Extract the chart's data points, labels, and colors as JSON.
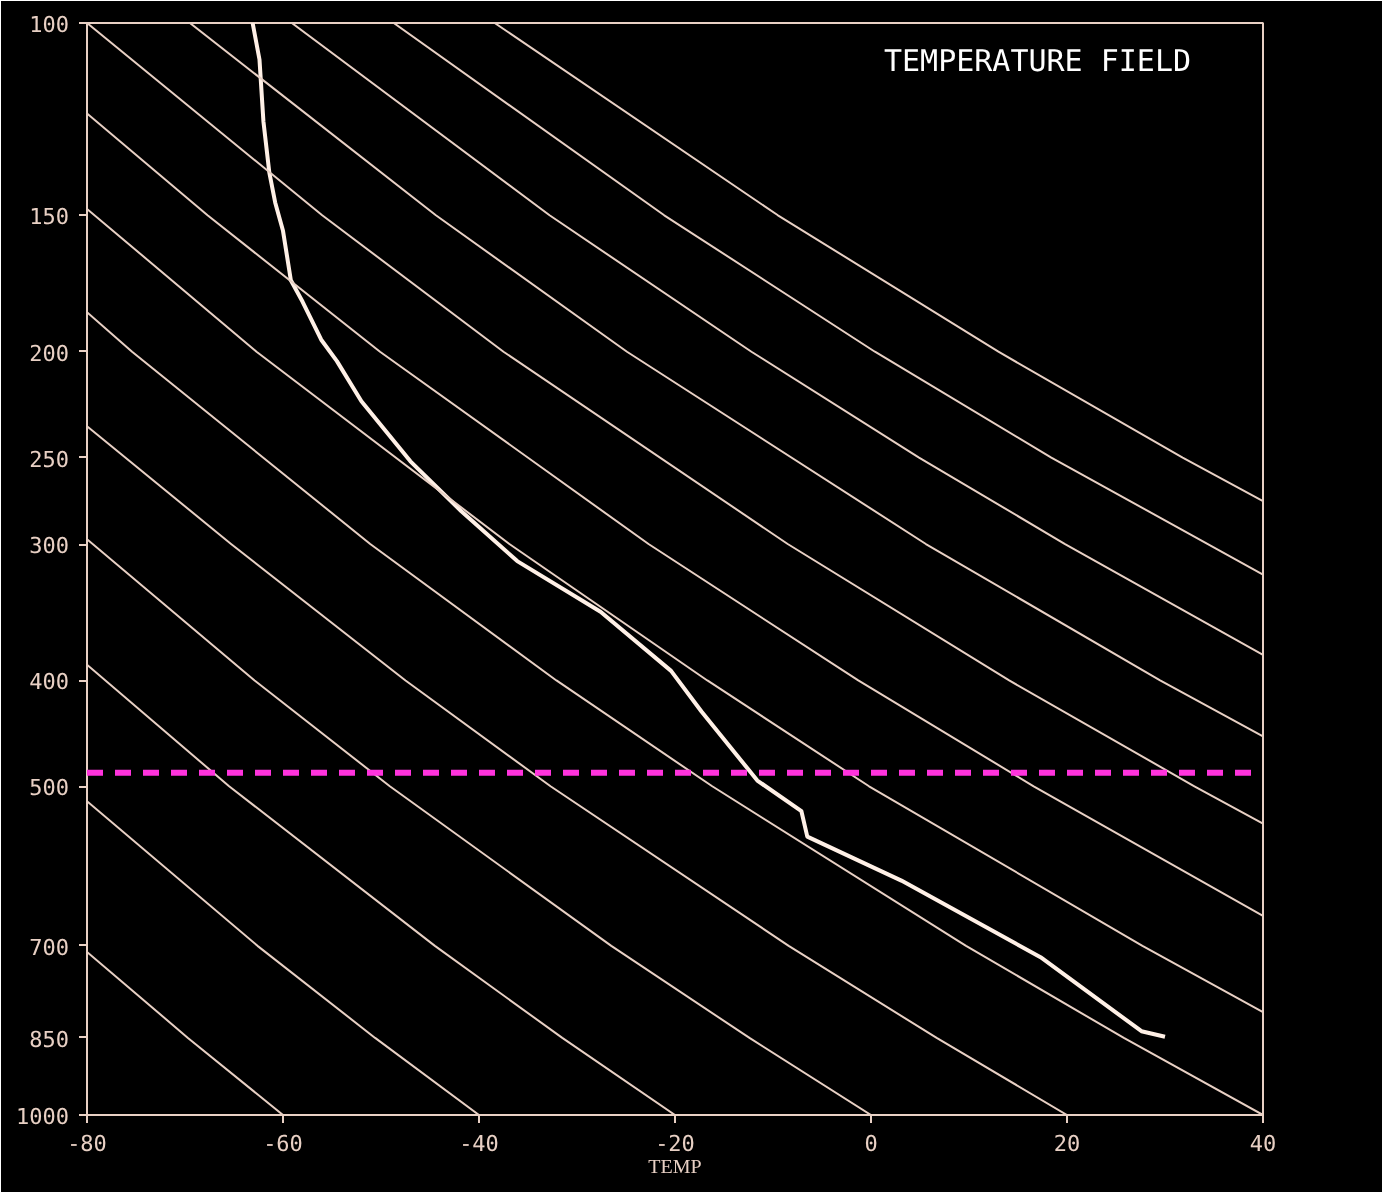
{
  "chart_data": {
    "type": "line",
    "title": "TEMPERATURE FIELD",
    "xlabel": "TEMP",
    "xlim": [
      -80,
      40
    ],
    "xticks": [
      -80,
      -60,
      -40,
      -20,
      0,
      20,
      40
    ],
    "ylim": [
      1000,
      100
    ],
    "yticks": [
      100,
      150,
      200,
      250,
      300,
      400,
      500,
      700,
      850,
      1000
    ],
    "log": "y",
    "grid": false,
    "series": [
      {
        "color": "#fff0e6",
        "x": [
          -63.1,
          -62.4,
          -62.0,
          -61.4,
          -60.8,
          -60.0,
          -59.2,
          -58.0,
          -56.1,
          -54.5,
          -52.0,
          -47.0,
          -41.8,
          -36.1,
          -27.6,
          -20.4,
          -17.3,
          -11.6,
          -7.1,
          -6.5,
          3.1,
          17.3,
          27.6,
          30.0
        ],
        "values": [
          100,
          108,
          123,
          137,
          146,
          155,
          172,
          180,
          195,
          204,
          222,
          252,
          280,
          311,
          346,
          392,
          427,
          494,
          527,
          556,
          610,
          717,
          838,
          848
        ]
      },
      {
        "color": "#e8d0c4",
        "x": [
          -60,
          -69.7,
          -80
        ],
        "values": [
          1000,
          850,
          709
        ]
      },
      {
        "color": "#e8d0c4",
        "x": [
          -40,
          -50.6,
          -62.6,
          -80
        ],
        "values": [
          1000,
          850,
          700,
          516
        ]
      },
      {
        "color": "#e8d0c4",
        "x": [
          -20,
          -31.5,
          -44.5,
          -65.5,
          -80
        ],
        "values": [
          1000,
          850,
          700,
          500,
          387
        ]
      },
      {
        "color": "#e8d0c4",
        "x": [
          0,
          -12.4,
          -26.5,
          -49.1,
          -62.9,
          -80
        ],
        "values": [
          1000,
          850,
          700,
          500,
          400,
          297
        ]
      },
      {
        "color": "#e8d0c4",
        "x": [
          20,
          6.7,
          -8.4,
          -32.7,
          -47.5,
          -65.3,
          -80
        ],
        "values": [
          1000,
          850,
          700,
          500,
          400,
          300,
          234
        ]
      },
      {
        "color": "#e8d0c4",
        "x": [
          40,
          25.8,
          9.7,
          -16.2,
          -32.1,
          -51.1,
          -75.4,
          -80
        ],
        "values": [
          1000,
          850,
          700,
          500,
          400,
          300,
          200,
          184
        ]
      },
      {
        "color": "#e8d0c4",
        "x": [
          40,
          27.7,
          -0.2,
          -16.7,
          -36.9,
          -62.7,
          -80
        ],
        "values": [
          805,
          700,
          500,
          400,
          300,
          200,
          148
        ]
      },
      {
        "color": "#e8d0c4",
        "x": [
          40,
          16.6,
          -1.3,
          -22.7,
          -50.1,
          -67.7,
          -80
        ],
        "values": [
          657,
          500,
          400,
          300,
          200,
          150,
          121
        ]
      },
      {
        "color": "#e8d0c4",
        "x": [
          40,
          33,
          14.1,
          -8.5,
          -37.5,
          -56.0,
          -80
        ],
        "values": [
          541,
          500,
          400,
          300,
          200,
          150,
          100
        ]
      },
      {
        "color": "#e8d0c4",
        "x": [
          40,
          29.5,
          5.6,
          -24.9,
          -44.4,
          -69.5
        ],
        "values": [
          450,
          400,
          300,
          200,
          150,
          100
        ]
      },
      {
        "color": "#e8d0c4",
        "x": [
          40,
          19.8,
          4.9,
          -12.2,
          -32.8,
          -59.1
        ],
        "values": [
          379,
          300,
          250,
          200,
          150,
          100
        ]
      },
      {
        "color": "#e8d0c4",
        "x": [
          40,
          18.4,
          0.4,
          -21.1,
          -48.7
        ],
        "values": [
          320,
          250,
          200,
          150,
          100
        ]
      },
      {
        "color": "#e8d0c4",
        "x": [
          40,
          31.8,
          13.0,
          -9.5,
          -38.4
        ],
        "values": [
          274,
          250,
          200,
          150,
          100
        ]
      }
    ],
    "ref_lines": [
      {
        "axis": "y",
        "value": 486,
        "color": "#ff33dd",
        "line_style": "dashed"
      }
    ]
  }
}
